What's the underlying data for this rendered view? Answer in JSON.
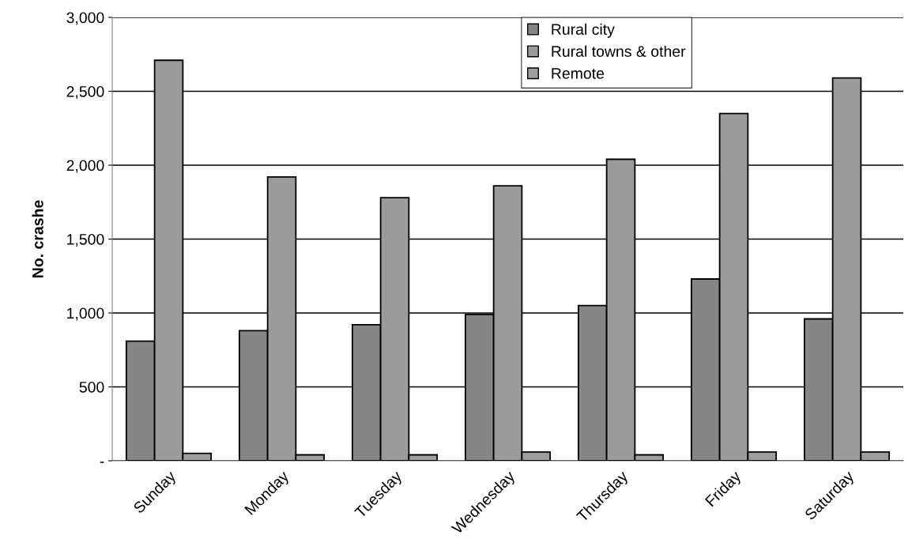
{
  "chart_data": {
    "type": "bar",
    "ylabel": "No. crashe",
    "categories": [
      "Sunday",
      "Monday",
      "Tuesday",
      "Wednesday",
      "Thursday",
      "Friday",
      "Saturday"
    ],
    "series": [
      {
        "name": "Rural city",
        "color": "#868686",
        "values": [
          810,
          880,
          920,
          990,
          1050,
          1230,
          960
        ]
      },
      {
        "name": "Rural towns & other",
        "color": "#9b9b9b",
        "values": [
          2710,
          1920,
          1780,
          1860,
          2040,
          2350,
          2590
        ]
      },
      {
        "name": "Remote",
        "color": "#9e9e9e",
        "values": [
          50,
          40,
          40,
          60,
          40,
          60,
          60
        ]
      }
    ],
    "ylim": [
      0,
      3000
    ],
    "yticks": [
      {
        "value": 0,
        "label": "-"
      },
      {
        "value": 500,
        "label": "500"
      },
      {
        "value": 1000,
        "label": "1,000"
      },
      {
        "value": 1500,
        "label": "1,500"
      },
      {
        "value": 2000,
        "label": "2,000"
      },
      {
        "value": 2500,
        "label": "2,500"
      },
      {
        "value": 3000,
        "label": "3,000"
      }
    ],
    "grid": "y",
    "legend": "top"
  }
}
